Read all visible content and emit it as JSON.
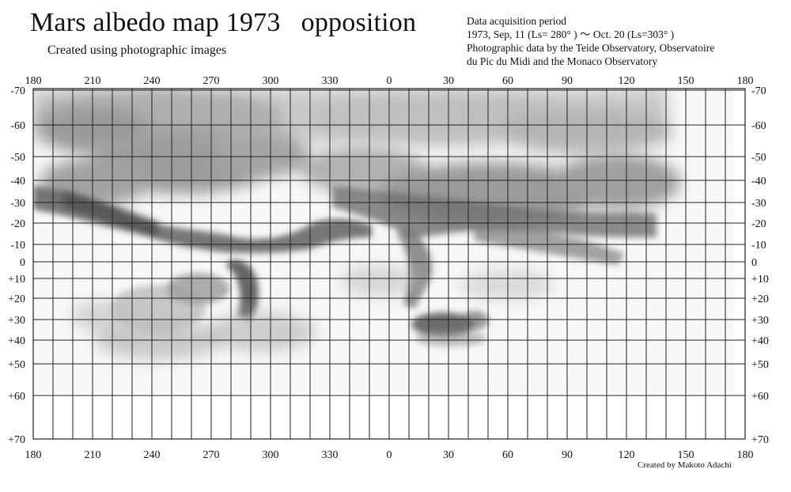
{
  "header": {
    "title": "Mars albedo map 1973   opposition",
    "subtitle": "Created using photographic images"
  },
  "info": {
    "line1": "Data acquisition period",
    "line2": "1973, Sep, 11 (Ls= 280° ) ～ Oct. 20 (Ls=303° )",
    "line3": "Photographic data by the Teide Observatory, Observatoire",
    "line4": "du Pic du Midi and the Monaco Observatory"
  },
  "credit": "Created by Makoto Adachi",
  "map": {
    "longitude_labels": [
      "180",
      "210",
      "240",
      "270",
      "300",
      "330",
      "0",
      "30",
      "60",
      "90",
      "120",
      "150",
      "180"
    ],
    "latitude_labels": [
      "-70",
      "-60",
      "-50",
      "-40",
      "-30",
      "-20",
      "-10",
      "0",
      "+10",
      "+20",
      "+30",
      "+40",
      "+50",
      "+60",
      "+70"
    ],
    "latitude_values": [
      -70,
      -60,
      -50,
      -40,
      -30,
      -20,
      -10,
      0,
      10,
      20,
      30,
      40,
      50,
      60,
      70
    ],
    "grid_step_deg": 10,
    "shading_color": "#6e6e6e"
  }
}
